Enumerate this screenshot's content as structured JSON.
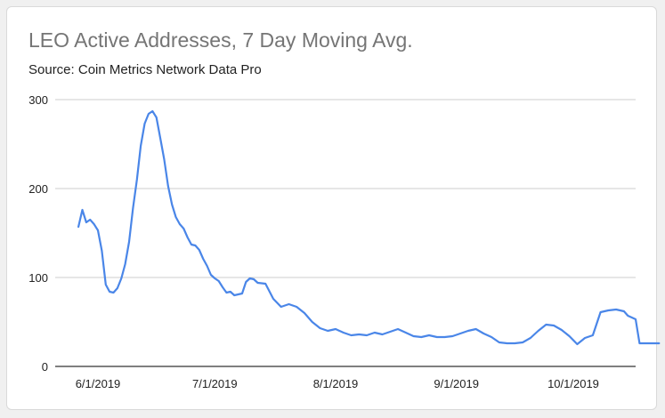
{
  "chart_data": {
    "type": "line",
    "title": "LEO Active Addresses, 7 Day Moving Avg.",
    "subtitle": "Source: Coin Metrics Network Data Pro",
    "xlabel": "",
    "ylabel": "",
    "ylim": [
      0,
      300
    ],
    "yticks": [
      "0",
      "100",
      "200",
      "300"
    ],
    "xticks": [
      "6/1/2019",
      "7/1/2019",
      "8/1/2019",
      "9/1/2019",
      "10/1/2019"
    ],
    "xtick_dates": [
      "2019-06-01",
      "2019-07-01",
      "2019-08-01",
      "2019-09-01",
      "2019-10-01"
    ],
    "grid": true,
    "series_color": "#4a86e8",
    "series": [
      {
        "x": [
          "2019-05-27",
          "2019-05-28",
          "2019-05-29",
          "2019-05-30",
          "2019-05-31",
          "2019-06-01",
          "2019-06-02",
          "2019-06-03",
          "2019-06-04",
          "2019-06-05",
          "2019-06-06",
          "2019-06-07",
          "2019-06-08",
          "2019-06-09",
          "2019-06-10",
          "2019-06-11",
          "2019-06-12",
          "2019-06-13",
          "2019-06-14",
          "2019-06-15",
          "2019-06-16",
          "2019-06-17",
          "2019-06-18",
          "2019-06-19",
          "2019-06-20",
          "2019-06-21",
          "2019-06-22",
          "2019-06-23",
          "2019-06-24",
          "2019-06-25",
          "2019-06-26",
          "2019-06-27",
          "2019-06-28",
          "2019-06-29",
          "2019-06-30",
          "2019-07-01",
          "2019-07-02",
          "2019-07-03",
          "2019-07-04",
          "2019-07-05",
          "2019-07-06",
          "2019-07-08",
          "2019-07-09",
          "2019-07-10",
          "2019-07-11",
          "2019-07-12",
          "2019-07-14",
          "2019-07-16",
          "2019-07-18",
          "2019-07-20",
          "2019-07-22",
          "2019-07-24",
          "2019-07-26",
          "2019-07-28",
          "2019-07-30",
          "2019-08-01",
          "2019-08-03",
          "2019-08-05",
          "2019-08-07",
          "2019-08-09",
          "2019-08-11",
          "2019-08-13",
          "2019-08-15",
          "2019-08-17",
          "2019-08-19",
          "2019-08-21",
          "2019-08-23",
          "2019-08-25",
          "2019-08-27",
          "2019-08-29",
          "2019-08-31",
          "2019-09-02",
          "2019-09-04",
          "2019-09-06",
          "2019-09-08",
          "2019-09-10",
          "2019-09-12",
          "2019-09-14",
          "2019-09-16",
          "2019-09-18",
          "2019-09-20",
          "2019-09-22",
          "2019-09-24",
          "2019-09-26",
          "2019-09-28",
          "2019-09-30",
          "2019-10-02",
          "2019-10-04",
          "2019-10-06",
          "2019-10-08",
          "2019-10-10",
          "2019-10-12",
          "2019-10-14",
          "2019-10-15",
          "2019-10-16",
          "2019-10-17",
          "2019-10-18",
          "2019-10-19",
          "2019-10-20",
          "2019-10-21",
          "2019-10-22",
          "2019-10-23"
        ],
        "values": [
          157,
          176,
          162,
          165,
          160,
          153,
          130,
          92,
          84,
          83,
          88,
          99,
          115,
          140,
          178,
          210,
          248,
          273,
          284,
          287,
          280,
          257,
          233,
          203,
          182,
          168,
          160,
          155,
          145,
          137,
          136,
          131,
          121,
          113,
          103,
          99,
          96,
          89,
          83,
          84,
          80,
          82,
          95,
          99,
          98,
          94,
          93,
          76,
          67,
          70,
          67,
          60,
          50,
          43,
          40,
          42,
          38,
          35,
          36,
          35,
          38,
          36,
          39,
          42,
          38,
          34,
          33,
          35,
          33,
          33,
          34,
          37,
          40,
          42,
          37,
          33,
          27,
          26,
          26,
          27,
          32,
          40,
          47,
          46,
          41,
          34,
          25,
          32,
          35,
          61,
          63,
          64,
          62,
          57,
          55,
          53,
          26,
          26,
          26,
          26,
          26,
          26
        ]
      }
    ]
  }
}
